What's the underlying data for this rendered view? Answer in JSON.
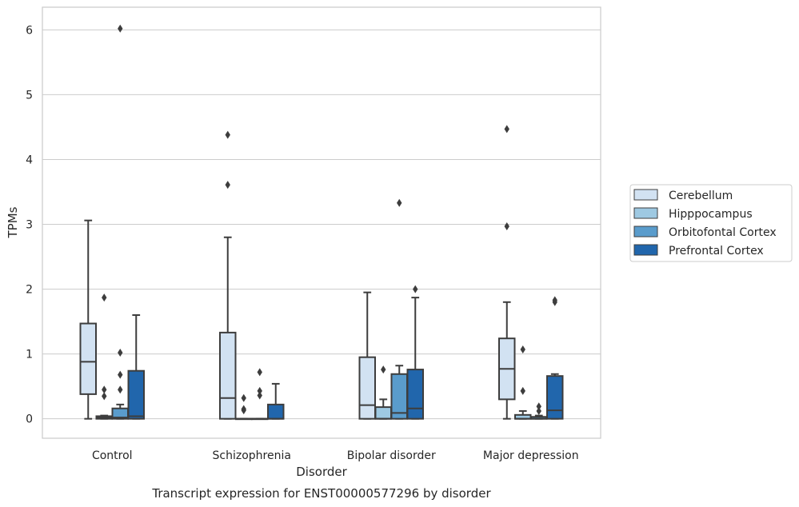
{
  "chart_data": {
    "type": "box",
    "title": "Transcript expression for ENST00000577296 by disorder",
    "xlabel": "Disorder",
    "ylabel": "TPMs",
    "ylim": [
      -0.3,
      6.35
    ],
    "yticks": [
      0,
      1,
      2,
      3,
      4,
      5,
      6
    ],
    "grid": true,
    "legend_position": "right",
    "categories": [
      "Control",
      "Schizophrenia",
      "Bipolar disorder",
      "Major depression"
    ],
    "series": [
      {
        "name": "Cerebellum",
        "color": "#d2e2f2",
        "boxes": [
          {
            "low": 0.0,
            "q1": 0.38,
            "median": 0.88,
            "q3": 1.47,
            "high": 3.06,
            "outliers": []
          },
          {
            "low": 0.0,
            "q1": 0.0,
            "median": 0.32,
            "q3": 1.33,
            "high": 2.8,
            "outliers": [
              3.61,
              4.38
            ]
          },
          {
            "low": 0.0,
            "q1": 0.0,
            "median": 0.21,
            "q3": 0.95,
            "high": 1.95,
            "outliers": []
          },
          {
            "low": 0.0,
            "q1": 0.3,
            "median": 0.77,
            "q3": 1.24,
            "high": 1.8,
            "outliers": [
              2.97,
              4.47
            ]
          }
        ]
      },
      {
        "name": "Hipppocampus",
        "color": "#9ec9e2",
        "boxes": [
          {
            "low": 0.0,
            "q1": 0.0,
            "median": 0.02,
            "q3": 0.04,
            "high": 0.05,
            "outliers": [
              0.35,
              0.45,
              1.87
            ]
          },
          {
            "low": 0.0,
            "q1": 0.0,
            "median": 0.0,
            "q3": 0.0,
            "high": 0.0,
            "outliers": [
              0.13,
              0.15,
              0.32
            ]
          },
          {
            "low": 0.0,
            "q1": 0.0,
            "median": 0.0,
            "q3": 0.18,
            "high": 0.3,
            "outliers": [
              0.76
            ]
          },
          {
            "low": 0.0,
            "q1": 0.0,
            "median": 0.0,
            "q3": 0.06,
            "high": 0.12,
            "outliers": [
              0.43,
              1.07
            ]
          }
        ]
      },
      {
        "name": "Orbitofontal Cortex",
        "color": "#5a9ccc",
        "boxes": [
          {
            "low": 0.0,
            "q1": 0.0,
            "median": 0.02,
            "q3": 0.16,
            "high": 0.22,
            "outliers": [
              0.45,
              0.68,
              1.02,
              6.02
            ]
          },
          {
            "low": 0.0,
            "q1": 0.0,
            "median": 0.0,
            "q3": 0.0,
            "high": 0.0,
            "outliers": [
              0.36,
              0.43,
              0.72
            ]
          },
          {
            "low": 0.0,
            "q1": 0.0,
            "median": 0.09,
            "q3": 0.69,
            "high": 0.82,
            "outliers": [
              3.33
            ]
          },
          {
            "low": 0.0,
            "q1": 0.0,
            "median": 0.0,
            "q3": 0.03,
            "high": 0.05,
            "outliers": [
              0.12,
              0.19
            ]
          }
        ]
      },
      {
        "name": "Prefrontal Cortex",
        "color": "#2166ac",
        "boxes": [
          {
            "low": 0.0,
            "q1": 0.0,
            "median": 0.04,
            "q3": 0.74,
            "high": 1.6,
            "outliers": []
          },
          {
            "low": 0.0,
            "q1": 0.0,
            "median": 0.0,
            "q3": 0.22,
            "high": 0.54,
            "outliers": []
          },
          {
            "low": 0.0,
            "q1": 0.0,
            "median": 0.16,
            "q3": 0.76,
            "high": 1.87,
            "outliers": [
              2.0
            ]
          },
          {
            "low": 0.0,
            "q1": 0.0,
            "median": 0.13,
            "q3": 0.66,
            "high": 0.69,
            "outliers": [
              1.8,
              1.83
            ]
          }
        ]
      }
    ]
  }
}
